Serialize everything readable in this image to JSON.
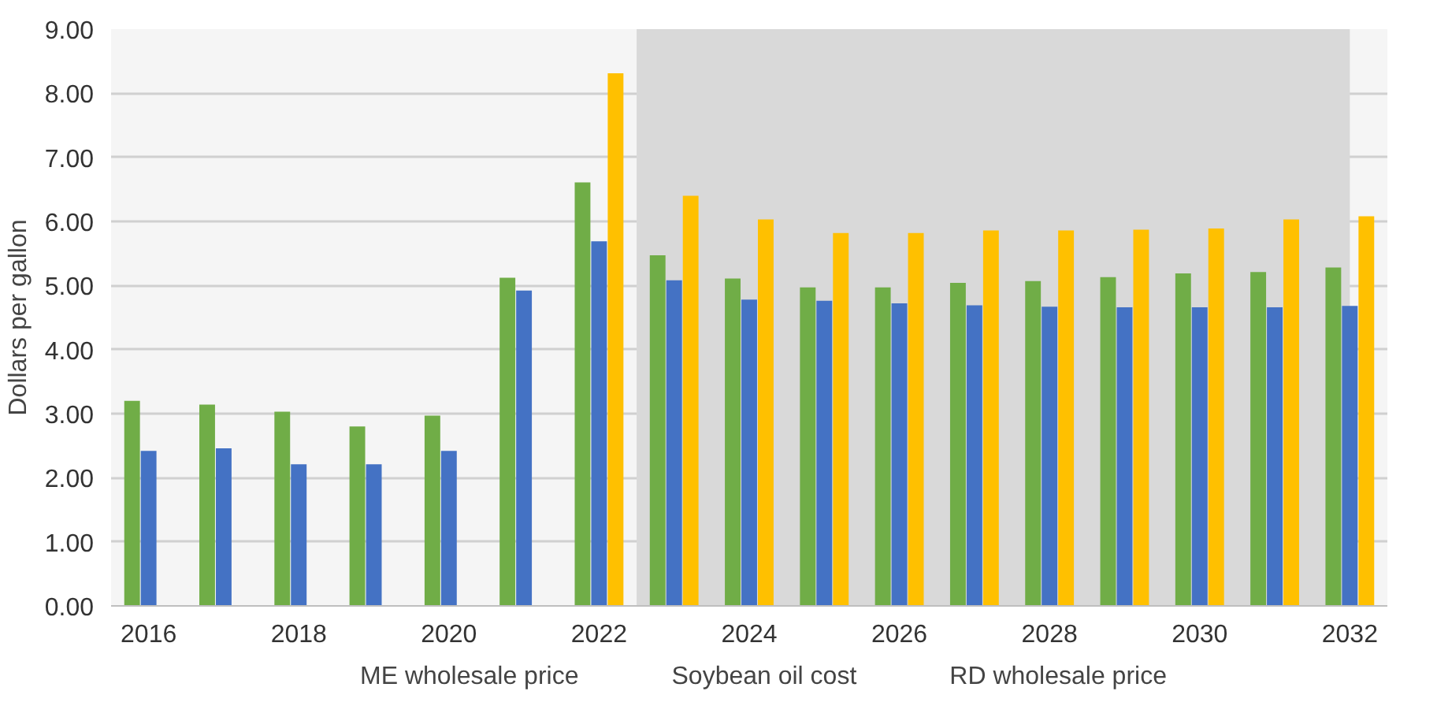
{
  "chart_data": {
    "type": "bar",
    "ylabel": "Dollars per gallon",
    "categories": [
      "2016",
      null,
      "2018",
      null,
      "2020",
      null,
      "2022",
      null,
      "2024",
      null,
      "2026",
      null,
      "2028",
      null,
      "2030",
      null,
      "2032"
    ],
    "series": [
      {
        "name": "ME wholesale price",
        "color": "#70ad47",
        "values": [
          3.2,
          3.14,
          3.03,
          2.8,
          2.97,
          5.12,
          6.61,
          5.47,
          5.11,
          4.97,
          4.97,
          5.04,
          5.07,
          5.13,
          5.19,
          5.21,
          5.28
        ]
      },
      {
        "name": "Soybean oil cost",
        "color": "#4472c4",
        "values": [
          2.42,
          2.46,
          2.21,
          2.21,
          2.42,
          4.92,
          5.69,
          5.08,
          4.78,
          4.76,
          4.72,
          4.69,
          4.67,
          4.66,
          4.66,
          4.66,
          4.68
        ]
      },
      {
        "name": "RD wholesale price",
        "color": "#ffc000",
        "values": [
          null,
          null,
          null,
          null,
          null,
          null,
          8.31,
          6.4,
          6.03,
          5.82,
          5.82,
          5.86,
          5.86,
          5.87,
          5.89,
          6.03,
          6.08
        ]
      }
    ],
    "ylim": [
      0,
      9
    ],
    "yticks": [
      {
        "value": 0,
        "label": "0.00"
      },
      {
        "value": 1,
        "label": "1.00"
      },
      {
        "value": 2,
        "label": "2.00"
      },
      {
        "value": 3,
        "label": "3.00"
      },
      {
        "value": 4,
        "label": "4.00"
      },
      {
        "value": 5,
        "label": "5.00"
      },
      {
        "value": 6,
        "label": "6.00"
      },
      {
        "value": 7,
        "label": "7.00"
      },
      {
        "value": 8,
        "label": "8.00"
      },
      {
        "value": 9,
        "label": "9.00"
      }
    ],
    "bands": [
      {
        "axis": "x",
        "from": "2022",
        "to": "2032",
        "color": "#d9d9d9"
      }
    ],
    "grid": "y",
    "legend": "bottom"
  }
}
